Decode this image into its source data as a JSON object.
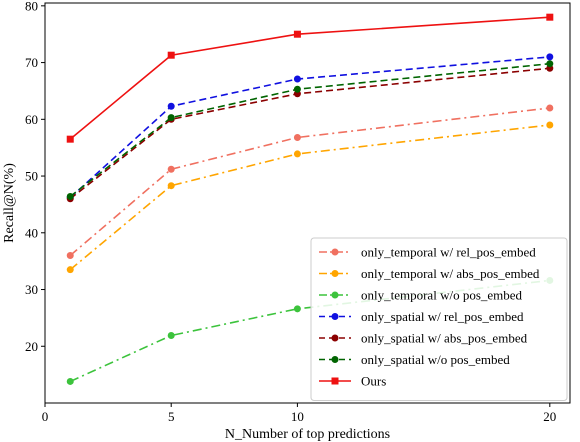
{
  "chart_data": {
    "type": "line",
    "title": "",
    "xlabel": "N_Number of top predictions",
    "ylabel": "Recall@N(%)",
    "xlim": [
      0,
      20.8
    ],
    "ylim": [
      10,
      80.5
    ],
    "xticks": [
      0,
      5,
      10,
      20
    ],
    "yticks": [
      20,
      30,
      40,
      50,
      60,
      70,
      80
    ],
    "grid": false,
    "legend_position": "lower-right",
    "x": [
      1,
      5,
      10,
      20
    ],
    "series": [
      {
        "name": "only_temporal w/ rel_pos_embed",
        "values": [
          36.0,
          51.2,
          56.8,
          62.0
        ],
        "color": "#f07060",
        "dash": "dashdot",
        "marker": "circle"
      },
      {
        "name": "only_temporal w/ abs_pos_embed",
        "values": [
          33.5,
          48.3,
          53.9,
          59.0
        ],
        "color": "#ffa500",
        "dash": "dashdot",
        "marker": "circle"
      },
      {
        "name": "only_temporal w/o pos_embed",
        "values": [
          13.8,
          21.9,
          26.6,
          31.6
        ],
        "color": "#3cc33c",
        "dash": "dashdot",
        "marker": "circle"
      },
      {
        "name": "only_spatial w/ rel_pos_embed",
        "values": [
          46.2,
          62.3,
          67.1,
          71.0
        ],
        "color": "#1010e0",
        "dash": "dashed",
        "marker": "circle"
      },
      {
        "name": "only_spatial w/ abs_pos_embed",
        "values": [
          46.0,
          60.0,
          64.5,
          69.0
        ],
        "color": "#8b0000",
        "dash": "dashed",
        "marker": "circle"
      },
      {
        "name": "only_spatial w/o pos_embed",
        "values": [
          46.4,
          60.3,
          65.3,
          69.8
        ],
        "color": "#006400",
        "dash": "dashed",
        "marker": "circle"
      },
      {
        "name": "Ours",
        "values": [
          56.5,
          71.3,
          75.0,
          78.0
        ],
        "color": "#ee1111",
        "dash": "solid",
        "marker": "square"
      }
    ]
  }
}
